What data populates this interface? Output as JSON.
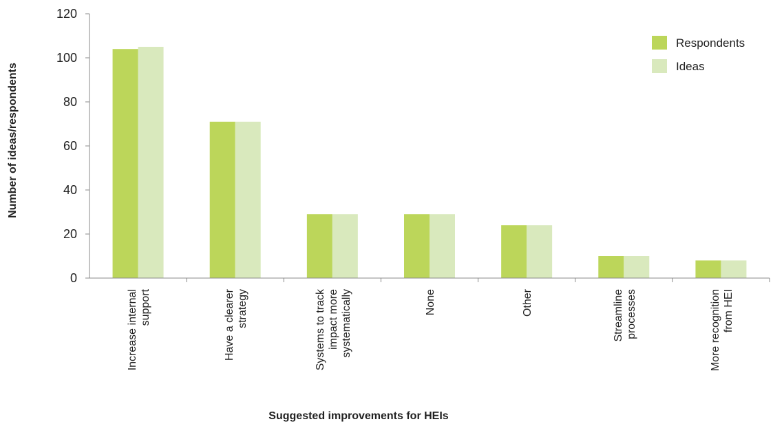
{
  "chart_data": {
    "type": "bar",
    "categories": [
      [
        "Increase internal",
        "support"
      ],
      [
        "Have a clearer",
        "strategy"
      ],
      [
        "Systems to track",
        "impact more",
        "systematically"
      ],
      [
        "None"
      ],
      [
        "Other"
      ],
      [
        "Streamline",
        "processes"
      ],
      [
        "More recognition",
        "from HEI"
      ]
    ],
    "series": [
      {
        "name": "Respondents",
        "values": [
          104,
          71,
          29,
          29,
          24,
          10,
          8
        ],
        "color": "#bcd65a"
      },
      {
        "name": "Ideas",
        "values": [
          105,
          71,
          29,
          29,
          24,
          10,
          8
        ],
        "color": "#d9e9bd"
      }
    ],
    "xlabel": "Suggested improvements for HEIs",
    "ylabel": "Number of ideas/respondents",
    "ylim": [
      0,
      120
    ],
    "yticks": [
      0,
      20,
      40,
      60,
      80,
      100,
      120
    ],
    "grid": false,
    "legend": "top-right"
  }
}
